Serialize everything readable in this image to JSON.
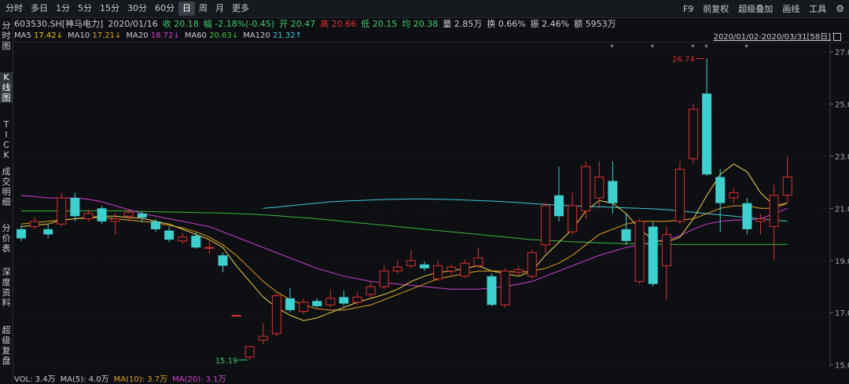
{
  "toolbar": {
    "timeframes": [
      "分时",
      "多日",
      "1分",
      "5分",
      "15分",
      "30分",
      "60分",
      "日",
      "周",
      "月",
      "更多"
    ],
    "active_index": 7,
    "tools": [
      "F9",
      "前复权",
      "超级叠加",
      "画线",
      "工具"
    ]
  },
  "sidebar": [
    "分\n时\n图",
    "K\n线\n图",
    "T\nI\nC\nK",
    "成\n交\n明\n细",
    "分\n价\n表",
    "深\n度\n资\n料",
    "超\n级\n复\n盘"
  ],
  "info": {
    "code": "603530.SH[神马电力]",
    "date": "2020/01/16",
    "close": "收 20.18",
    "change": "幅 -2.18%(-0.45)",
    "open": "开 20.47",
    "high": "高 20.66",
    "low": "低 20.15",
    "avg": "均 20.38",
    "volume": "量 2.85万",
    "turnover": "换 0.66%",
    "amplitude": "振 2.46%",
    "amount": "额 5953万"
  },
  "ma_line": [
    {
      "label": "MA5",
      "value": "17.42↓",
      "color": "#f0c419"
    },
    {
      "label": "MA10",
      "value": "17.21↓",
      "color": "#e0a020"
    },
    {
      "label": "MA20",
      "value": "18.72↓",
      "color": "#d040d0"
    },
    {
      "label": "MA60",
      "value": "20.63↓",
      "color": "#40c040"
    },
    {
      "label": "MA120",
      "value": "21.32↑",
      "color": "#40c8d8"
    }
  ],
  "range_label": "2020/01/02-2020/03/31[58日]",
  "vol_line": [
    {
      "text": "VOL: 3.4万",
      "color": "#c8ccd2"
    },
    {
      "text": "MA(5): 4.0万",
      "color": "#c8ccd2"
    },
    {
      "text": "MA(10): 3.7万",
      "color": "#e0a020"
    },
    {
      "text": "MA(20): 3.1万",
      "color": "#d040d0"
    }
  ],
  "colors": {
    "up": "#e03030",
    "down": "#3ecfcf",
    "bg": "#0d0f12"
  },
  "chart_data": {
    "type": "candlestick",
    "yticks": [
      15.0,
      17.0,
      19.0,
      21.0,
      23.0,
      25.0,
      27.0
    ],
    "ylim": [
      14.9,
      27.3
    ],
    "annotations": [
      {
        "label": "26.74",
        "value": 26.74,
        "candle": 51
      },
      {
        "label": "15.19",
        "value": 15.19,
        "candle": 17
      }
    ],
    "star_candles": [
      44,
      47,
      50,
      51,
      54
    ],
    "candles": [
      {
        "o": 20.2,
        "c": 19.85,
        "h": 20.35,
        "l": 19.75
      },
      {
        "o": 20.3,
        "c": 20.5,
        "h": 20.65,
        "l": 20.2
      },
      {
        "o": 20.2,
        "c": 20.0,
        "h": 20.4,
        "l": 19.85
      },
      {
        "o": 20.4,
        "c": 21.4,
        "h": 21.6,
        "l": 20.3
      },
      {
        "o": 21.4,
        "c": 20.7,
        "h": 21.6,
        "l": 20.5
      },
      {
        "o": 20.6,
        "c": 20.8,
        "h": 20.95,
        "l": 20.5
      },
      {
        "o": 21.0,
        "c": 20.5,
        "h": 21.1,
        "l": 20.4
      },
      {
        "o": 20.5,
        "c": 20.6,
        "h": 20.8,
        "l": 20.0
      },
      {
        "o": 20.7,
        "c": 20.85,
        "h": 20.95,
        "l": 20.5
      },
      {
        "o": 20.8,
        "c": 20.65,
        "h": 20.9,
        "l": 20.45
      },
      {
        "o": 20.5,
        "c": 20.2,
        "h": 20.6,
        "l": 20.1
      },
      {
        "o": 20.15,
        "c": 19.8,
        "h": 20.3,
        "l": 19.7
      },
      {
        "o": 19.75,
        "c": 19.9,
        "h": 20.05,
        "l": 19.65
      },
      {
        "o": 19.95,
        "c": 19.5,
        "h": 20.1,
        "l": 19.45
      },
      {
        "o": 19.5,
        "c": 19.5,
        "h": 19.75,
        "l": 19.25
      },
      {
        "o": 19.2,
        "c": 18.8,
        "h": 19.3,
        "l": 18.55
      },
      {
        "o": 16.9,
        "c": 16.9,
        "h": 16.9,
        "l": 16.9
      },
      {
        "o": 15.3,
        "c": 15.7,
        "h": 15.7,
        "l": 15.19
      },
      {
        "o": 15.95,
        "c": 16.1,
        "h": 16.6,
        "l": 15.8
      },
      {
        "o": 16.2,
        "c": 17.65,
        "h": 17.75,
        "l": 16.1
      },
      {
        "o": 17.55,
        "c": 17.1,
        "h": 17.95,
        "l": 17.0
      },
      {
        "o": 17.05,
        "c": 17.4,
        "h": 17.55,
        "l": 16.95
      },
      {
        "o": 17.45,
        "c": 17.25,
        "h": 17.55,
        "l": 17.2
      },
      {
        "o": 17.3,
        "c": 17.55,
        "h": 17.9,
        "l": 17.2
      },
      {
        "o": 17.6,
        "c": 17.35,
        "h": 17.85,
        "l": 17.25
      },
      {
        "o": 17.4,
        "c": 17.6,
        "h": 17.8,
        "l": 17.3
      },
      {
        "o": 17.7,
        "c": 18.0,
        "h": 18.2,
        "l": 17.6
      },
      {
        "o": 18.0,
        "c": 18.6,
        "h": 18.8,
        "l": 17.9
      },
      {
        "o": 18.6,
        "c": 18.75,
        "h": 19.0,
        "l": 18.5
      },
      {
        "o": 18.8,
        "c": 19.0,
        "h": 19.4,
        "l": 18.7
      },
      {
        "o": 18.85,
        "c": 18.7,
        "h": 18.95,
        "l": 18.6
      },
      {
        "o": 18.3,
        "c": 18.8,
        "h": 19.0,
        "l": 18.2
      },
      {
        "o": 18.6,
        "c": 18.75,
        "h": 18.85,
        "l": 18.45
      },
      {
        "o": 18.4,
        "c": 18.9,
        "h": 19.05,
        "l": 18.35
      },
      {
        "o": 18.8,
        "c": 19.1,
        "h": 19.5,
        "l": 18.7
      },
      {
        "o": 18.4,
        "c": 17.3,
        "h": 18.5,
        "l": 17.25
      },
      {
        "o": 17.3,
        "c": 18.6,
        "h": 18.7,
        "l": 17.2
      },
      {
        "o": 18.55,
        "c": 18.65,
        "h": 18.8,
        "l": 18.4
      },
      {
        "o": 18.4,
        "c": 19.3,
        "h": 19.4,
        "l": 18.3
      },
      {
        "o": 19.6,
        "c": 21.1,
        "h": 21.2,
        "l": 19.3
      },
      {
        "o": 21.5,
        "c": 20.7,
        "h": 22.6,
        "l": 20.5
      },
      {
        "o": 20.1,
        "c": 21.1,
        "h": 21.6,
        "l": 20.0
      },
      {
        "o": 20.9,
        "c": 22.6,
        "h": 22.8,
        "l": 20.6
      },
      {
        "o": 21.4,
        "c": 22.2,
        "h": 22.8,
        "l": 21.0
      },
      {
        "o": 22.05,
        "c": 21.2,
        "h": 22.8,
        "l": 20.8
      },
      {
        "o": 20.2,
        "c": 19.75,
        "h": 20.8,
        "l": 19.6
      },
      {
        "o": 18.2,
        "c": 20.5,
        "h": 20.6,
        "l": 18.1
      },
      {
        "o": 20.3,
        "c": 18.1,
        "h": 20.5,
        "l": 18.0
      },
      {
        "o": 18.8,
        "c": 20.0,
        "h": 20.3,
        "l": 17.5
      },
      {
        "o": 20.5,
        "c": 22.5,
        "h": 22.8,
        "l": 20.4
      },
      {
        "o": 22.9,
        "c": 24.8,
        "h": 25.0,
        "l": 22.7
      },
      {
        "o": 25.4,
        "c": 22.3,
        "h": 26.74,
        "l": 22.25
      },
      {
        "o": 22.2,
        "c": 21.2,
        "h": 22.5,
        "l": 20.1
      },
      {
        "o": 21.4,
        "c": 21.6,
        "h": 21.8,
        "l": 21.2
      },
      {
        "o": 21.2,
        "c": 20.2,
        "h": 21.4,
        "l": 20.0
      },
      {
        "o": 20.5,
        "c": 20.6,
        "h": 20.8,
        "l": 20.0
      },
      {
        "o": 20.3,
        "c": 21.5,
        "h": 21.9,
        "l": 19.0
      },
      {
        "o": 21.5,
        "c": 22.2,
        "h": 23.0,
        "l": 21.2
      }
    ],
    "ma5": [
      20.3,
      20.35,
      20.4,
      20.55,
      20.6,
      20.65,
      20.7,
      20.7,
      20.65,
      20.62,
      20.5,
      20.4,
      20.2,
      20.0,
      19.8,
      19.5,
      18.8,
      18.2,
      17.6,
      17.2,
      16.9,
      16.7,
      16.8,
      17.0,
      17.2,
      17.4,
      17.55,
      17.7,
      17.9,
      18.2,
      18.4,
      18.55,
      18.6,
      18.7,
      18.8,
      18.6,
      18.5,
      18.4,
      18.6,
      19.2,
      19.7,
      20.2,
      20.9,
      21.3,
      21.2,
      20.8,
      20.2,
      19.8,
      19.7,
      19.9,
      20.6,
      21.5,
      22.3,
      22.7,
      22.4,
      21.6,
      21.1,
      21.2
    ],
    "ma10": [
      20.4,
      20.45,
      20.5,
      20.55,
      20.6,
      20.65,
      20.65,
      20.6,
      20.55,
      20.5,
      20.45,
      20.35,
      20.25,
      20.1,
      19.9,
      19.6,
      19.2,
      18.7,
      18.2,
      17.8,
      17.5,
      17.3,
      17.15,
      17.1,
      17.1,
      17.2,
      17.3,
      17.5,
      17.7,
      17.9,
      18.1,
      18.3,
      18.4,
      18.5,
      18.6,
      18.6,
      18.6,
      18.55,
      18.6,
      18.7,
      18.9,
      19.2,
      19.6,
      20.0,
      20.2,
      20.4,
      20.5,
      20.5,
      20.5,
      20.55,
      20.6,
      20.8,
      21.0,
      21.1,
      21.1,
      21.0,
      21.0,
      21.2
    ],
    "ma20": [
      21.5,
      21.45,
      21.4,
      21.4,
      21.4,
      21.35,
      21.25,
      21.1,
      20.95,
      20.8,
      20.7,
      20.6,
      20.5,
      20.4,
      20.3,
      20.1,
      19.9,
      19.7,
      19.5,
      19.3,
      19.1,
      18.9,
      18.7,
      18.55,
      18.4,
      18.3,
      18.2,
      18.15,
      18.1,
      18.05,
      18.0,
      17.95,
      17.9,
      17.9,
      17.9,
      17.95,
      18.0,
      18.1,
      18.2,
      18.4,
      18.6,
      18.8,
      19.0,
      19.2,
      19.35,
      19.5,
      19.6,
      19.7,
      19.8,
      19.95,
      20.2,
      20.4,
      20.5,
      20.55,
      20.55,
      20.6,
      20.8,
      21.0
    ],
    "ma60": [
      20.9,
      20.9,
      20.9,
      20.9,
      20.9,
      20.9,
      20.9,
      20.9,
      20.9,
      20.88,
      20.87,
      20.86,
      20.85,
      20.84,
      20.83,
      20.82,
      20.8,
      20.78,
      20.75,
      20.72,
      20.68,
      20.64,
      20.6,
      20.55,
      20.5,
      20.45,
      20.4,
      20.35,
      20.3,
      20.25,
      20.2,
      20.15,
      20.1,
      20.05,
      20.0,
      19.95,
      19.9,
      19.85,
      19.8,
      19.78,
      19.75,
      19.72,
      19.7,
      19.68,
      19.66,
      19.65,
      19.64,
      19.63,
      19.62,
      19.62,
      19.62,
      19.62,
      19.62,
      19.62,
      19.62,
      19.62,
      19.62,
      19.62
    ],
    "ma120_start": 18,
    "ma120": [
      21.0,
      21.05,
      21.1,
      21.15,
      21.2,
      21.25,
      21.28,
      21.3,
      21.32,
      21.34,
      21.35,
      21.36,
      21.36,
      21.35,
      21.34,
      21.32,
      21.3,
      21.28,
      21.25,
      21.22,
      21.18,
      21.15,
      21.12,
      21.1,
      21.08,
      21.06,
      21.04,
      21.02,
      21.0,
      20.98,
      20.95,
      20.9,
      20.85,
      20.8,
      20.75,
      20.7,
      20.65,
      20.6,
      20.55,
      20.5
    ]
  }
}
